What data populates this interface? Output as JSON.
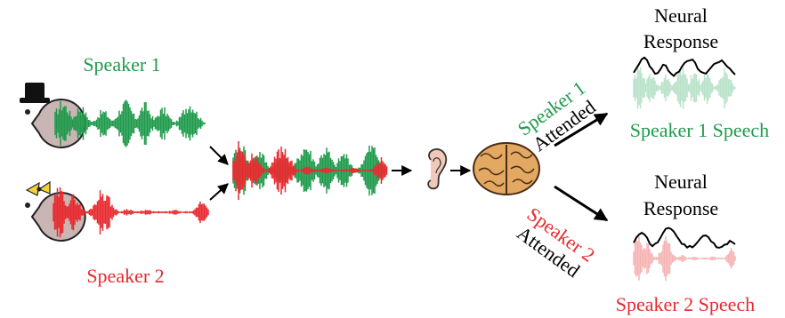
{
  "speaker1": {
    "label": "Speaker 1"
  },
  "speaker2": {
    "label": "Speaker 2"
  },
  "attended1": {
    "line1": "Speaker 1",
    "line2": "Attended"
  },
  "attended2": {
    "line1": "Speaker 2",
    "line2": "Attended"
  },
  "output1": {
    "title_line1": "Neural",
    "title_line2": "Response",
    "caption": "Speaker 1 Speech"
  },
  "output2": {
    "title_line1": "Neural",
    "title_line2": "Response",
    "caption": "Speaker 2 Speech"
  },
  "colors": {
    "speaker1": "#1f9a4c",
    "speaker2": "#e8282e",
    "speaker1_light": "#b9e2c9",
    "speaker2_light": "#f6b4b4",
    "arrow": "#000000",
    "head": "#c9b5b3",
    "brain": "#e3a862"
  },
  "icons": {
    "speaker1_avatar": "head-with-top-hat-icon",
    "speaker2_avatar": "head-with-bow-icon",
    "ear": "ear-icon",
    "brain": "brain-icon"
  }
}
